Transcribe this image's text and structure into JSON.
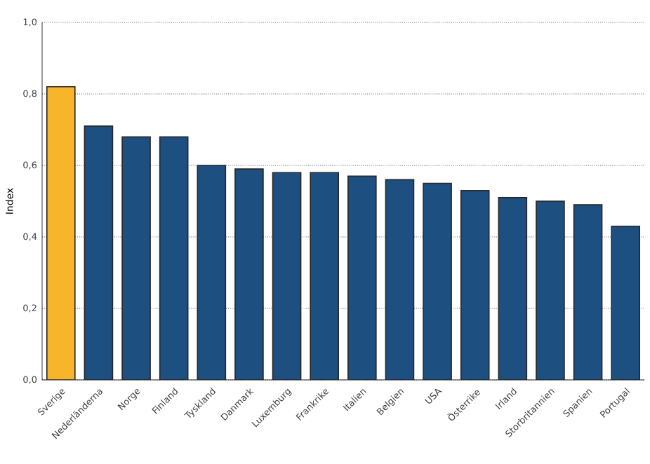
{
  "chart_data": {
    "type": "bar",
    "ylabel": "Index",
    "categories": [
      "Sverige",
      "Nederländerna",
      "Norge",
      "Finland",
      "Tyskland",
      "Danmark",
      "Luxemburg",
      "Frankrike",
      "Italien",
      "Belgien",
      "USA",
      "Österrike",
      "Irland",
      "Storbritannien",
      "Spanien",
      "Portugal"
    ],
    "values": [
      0.82,
      0.71,
      0.68,
      0.68,
      0.6,
      0.59,
      0.58,
      0.58,
      0.57,
      0.56,
      0.55,
      0.53,
      0.51,
      0.5,
      0.49,
      0.43
    ],
    "colors": [
      "#f7b52c",
      "#1d4f80",
      "#1d4f80",
      "#1d4f80",
      "#1d4f80",
      "#1d4f80",
      "#1d4f80",
      "#1d4f80",
      "#1d4f80",
      "#1d4f80",
      "#1d4f80",
      "#1d4f80",
      "#1d4f80",
      "#1d4f80",
      "#1d4f80",
      "#1d4f80"
    ],
    "ylim": [
      0,
      1
    ],
    "yticks": [
      {
        "value": 0,
        "label": "0,0"
      },
      {
        "value": 0.2,
        "label": "0,2"
      },
      {
        "value": 0.4,
        "label": "0,4"
      },
      {
        "value": 0.6,
        "label": "0,6"
      },
      {
        "value": 0.8,
        "label": "0,8"
      },
      {
        "value": 1,
        "label": "1,0"
      }
    ],
    "grid": "y"
  }
}
